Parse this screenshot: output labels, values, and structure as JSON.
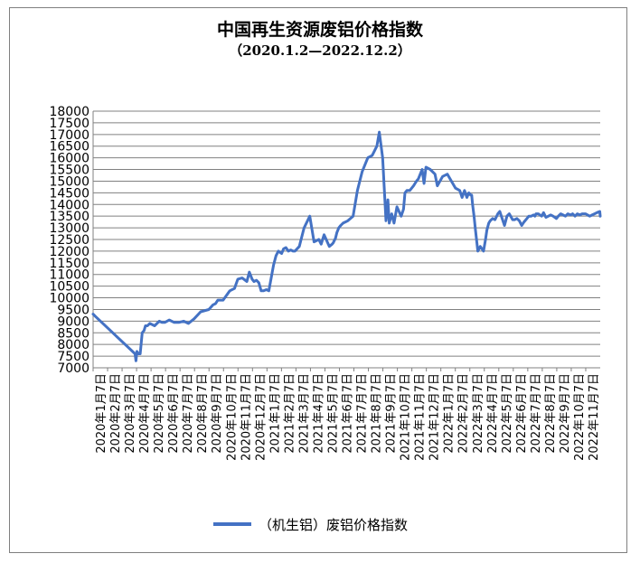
{
  "chart_data": {
    "type": "line",
    "title": "中国再生资源废铝价格指数",
    "subtitle": "（2020.1.2—2022.12.2）",
    "xlabel": "",
    "ylabel": "",
    "ylim": [
      7000,
      18000
    ],
    "y_ticks": [
      7000,
      7500,
      8000,
      8500,
      9000,
      9500,
      10000,
      10500,
      11000,
      11500,
      12000,
      12500,
      13000,
      13500,
      14000,
      14500,
      15000,
      15500,
      16000,
      16500,
      17000,
      17500,
      18000
    ],
    "x_tick_labels": [
      "2020年1月7日",
      "2020年2月7日",
      "2020年3月7日",
      "2020年4月7日",
      "2020年5月7日",
      "2020年6月7日",
      "2020年7月7日",
      "2020年8月7日",
      "2020年9月7日",
      "2020年10月7日",
      "2020年11月7日",
      "2020年12月7日",
      "2021年1月7日",
      "2021年2月7日",
      "2021年3月7日",
      "2021年4月7日",
      "2021年5月7日",
      "2021年6月7日",
      "2021年7月7日",
      "2021年8月7日",
      "2021年9月7日",
      "2021年10月7日",
      "2021年11月7日",
      "2021年12月7日",
      "2022年1月7日",
      "2022年2月7日",
      "2022年3月7日",
      "2022年4月7日",
      "2022年5月7日",
      "2022年6月7日",
      "2022年7月7日",
      "2022年8月7日",
      "2022年9月7日",
      "2022年10月7日",
      "2022年11月7日"
    ],
    "grid": true,
    "legend_position": "bottom",
    "series": [
      {
        "name": "（机生铝）废铝价格指数",
        "color": "#4472c4",
        "x": [
          "2020-01-02",
          "2020-01-07",
          "2020-03-30",
          "2020-04-01",
          "2020-04-03",
          "2020-04-06",
          "2020-04-10",
          "2020-04-14",
          "2020-04-18",
          "2020-04-21",
          "2020-04-25",
          "2020-04-30",
          "2020-05-10",
          "2020-05-20",
          "2020-05-25",
          "2020-06-01",
          "2020-06-10",
          "2020-06-20",
          "2020-07-01",
          "2020-07-10",
          "2020-07-20",
          "2020-08-01",
          "2020-08-15",
          "2020-09-01",
          "2020-09-10",
          "2020-09-15",
          "2020-09-20",
          "2020-10-01",
          "2020-10-15",
          "2020-10-25",
          "2020-11-01",
          "2020-11-10",
          "2020-11-20",
          "2020-11-25",
          "2020-12-01",
          "2020-12-05",
          "2020-12-10",
          "2020-12-15",
          "2020-12-20",
          "2020-12-25",
          "2020-12-31",
          "2021-01-05",
          "2021-01-15",
          "2021-01-20",
          "2021-01-25",
          "2021-02-01",
          "2021-02-05",
          "2021-02-10",
          "2021-02-15",
          "2021-02-20",
          "2021-02-25",
          "2021-03-01",
          "2021-03-10",
          "2021-03-20",
          "2021-04-01",
          "2021-04-10",
          "2021-04-20",
          "2021-04-25",
          "2021-05-01",
          "2021-05-10",
          "2021-05-12",
          "2021-05-18",
          "2021-05-20",
          "2021-05-25",
          "2021-05-28",
          "2021-06-01",
          "2021-06-05",
          "2021-06-10",
          "2021-06-20",
          "2021-07-01",
          "2021-07-10",
          "2021-07-20",
          "2021-08-01",
          "2021-08-10",
          "2021-08-15",
          "2021-08-20",
          "2021-08-25",
          "2021-09-01",
          "2021-09-08",
          "2021-09-12",
          "2021-09-15",
          "2021-09-20",
          "2021-09-25",
          "2021-10-01",
          "2021-10-10",
          "2021-10-15",
          "2021-10-18",
          "2021-10-22",
          "2021-10-25",
          "2021-10-28",
          "2021-11-01",
          "2021-11-05",
          "2021-11-08",
          "2021-11-11",
          "2021-11-15",
          "2021-11-19",
          "2021-11-23",
          "2021-11-27",
          "2021-12-01",
          "2021-12-10",
          "2021-12-20",
          "2021-12-25",
          "2022-01-05",
          "2022-01-15",
          "2022-02-01",
          "2022-02-10",
          "2022-02-15",
          "2022-02-20",
          "2022-02-25",
          "2022-03-01",
          "2022-03-05",
          "2022-03-07",
          "2022-03-09",
          "2022-03-12",
          "2022-03-15",
          "2022-03-20",
          "2022-03-25",
          "2022-04-01",
          "2022-04-05",
          "2022-04-08",
          "2022-04-12",
          "2022-04-15",
          "2022-04-20",
          "2022-04-25",
          "2022-05-01",
          "2022-05-05",
          "2022-05-10",
          "2022-05-15",
          "2022-05-20",
          "2022-05-25",
          "2022-06-01",
          "2022-06-05",
          "2022-06-10",
          "2022-06-15",
          "2022-06-20",
          "2022-06-25",
          "2022-07-01",
          "2022-07-05",
          "2022-07-10",
          "2022-07-15",
          "2022-07-18",
          "2022-07-20",
          "2022-07-25",
          "2022-08-01",
          "2022-08-05",
          "2022-08-10",
          "2022-08-15",
          "2022-08-20",
          "2022-08-25",
          "2022-09-01",
          "2022-09-05",
          "2022-09-10",
          "2022-09-15",
          "2022-09-20",
          "2022-09-25",
          "2022-10-01",
          "2022-10-05",
          "2022-10-10",
          "2022-10-15",
          "2022-10-20",
          "2022-10-25",
          "2022-11-01",
          "2022-11-10",
          "2022-11-15",
          "2022-11-20",
          "2022-11-25",
          "2022-12-01",
          "2022-12-02"
        ],
        "values": [
          9300,
          9200,
          7600,
          7300,
          7700,
          7600,
          7600,
          8500,
          8600,
          8800,
          8800,
          8900,
          8800,
          9000,
          8950,
          8950,
          9050,
          8950,
          8950,
          9000,
          8900,
          9100,
          9400,
          9500,
          9700,
          9750,
          9900,
          9900,
          10300,
          10400,
          10800,
          10850,
          10700,
          11100,
          10800,
          10700,
          10750,
          10650,
          10300,
          10300,
          10350,
          10300,
          11400,
          11800,
          12000,
          11900,
          12100,
          12150,
          12000,
          12050,
          12000,
          12000,
          12200,
          13000,
          13500,
          12400,
          12500,
          12300,
          12700,
          12300,
          12200,
          12300,
          12350,
          12550,
          12800,
          13000,
          13100,
          13200,
          13300,
          13500,
          14600,
          15400,
          16000,
          16100,
          16300,
          16500,
          17100,
          16000,
          13300,
          14200,
          13200,
          13600,
          13200,
          13900,
          13500,
          13800,
          14500,
          14600,
          14600,
          14600,
          14700,
          14800,
          14900,
          15000,
          15100,
          15300,
          15500,
          14900,
          15600,
          15500,
          15300,
          14800,
          15200,
          15300,
          14700,
          14600,
          14300,
          14600,
          14300,
          14500,
          14400,
          14400,
          14000,
          13500,
          12900,
          12000,
          12200,
          12000,
          12500,
          12900,
          13200,
          13300,
          13400,
          13350,
          13600,
          13700,
          13400,
          13100,
          13500,
          13600,
          13350,
          13350,
          13400,
          13300,
          13100,
          13250,
          13400,
          13500,
          13500,
          13550,
          13500,
          13600,
          13600,
          13500,
          13650,
          13450,
          13500,
          13550,
          13500,
          13400,
          13500,
          13600,
          13550,
          13500,
          13600,
          13550,
          13600,
          13500,
          13600,
          13550,
          13600,
          13600,
          13500,
          13550,
          13600,
          13650,
          13700,
          13500
        ]
      }
    ]
  }
}
